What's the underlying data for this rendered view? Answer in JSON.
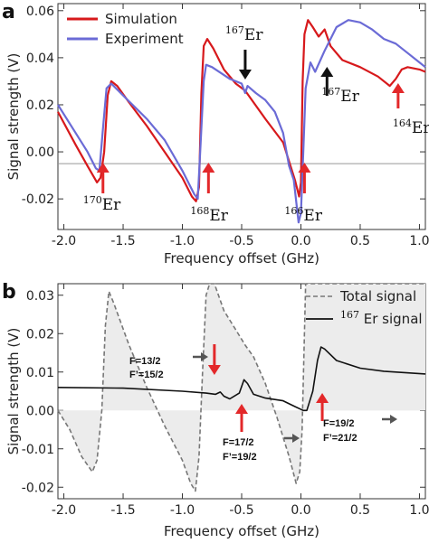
{
  "chart_data": [
    {
      "panel_label": "a",
      "type": "line",
      "xlabel": "Frequency offset (GHz)",
      "ylabel": "Signal strength (V)",
      "xlim": [
        -2.05,
        1.05
      ],
      "ylim": [
        -0.033,
        0.063
      ],
      "xticks": [
        -2.0,
        -1.5,
        -1.0,
        -0.5,
        0.0,
        0.5,
        1.0
      ],
      "xtick_labels": [
        "-2.0",
        "-1.5",
        "-1.0",
        "-0.5",
        "0.0",
        "0.5",
        "1.0"
      ],
      "yticks": [
        -0.02,
        0.0,
        0.02,
        0.04,
        0.06
      ],
      "ytick_labels": [
        "-0.02",
        "0.00",
        "0.02",
        "0.04",
        "0.06"
      ],
      "baseline_y": -0.005,
      "legend_position": "top-left",
      "series": [
        {
          "name": "Simulation",
          "color": "#d7191c",
          "points": [
            [
              -2.05,
              0.017
            ],
            [
              -1.9,
              0.003
            ],
            [
              -1.8,
              -0.006
            ],
            [
              -1.72,
              -0.013
            ],
            [
              -1.69,
              -0.011
            ],
            [
              -1.66,
              0.0
            ],
            [
              -1.63,
              0.024
            ],
            [
              -1.6,
              0.03
            ],
            [
              -1.55,
              0.028
            ],
            [
              -1.45,
              0.021
            ],
            [
              -1.3,
              0.011
            ],
            [
              -1.15,
              0.0
            ],
            [
              -1.0,
              -0.011
            ],
            [
              -0.92,
              -0.019
            ],
            [
              -0.885,
              -0.021
            ],
            [
              -0.86,
              -0.015
            ],
            [
              -0.84,
              0.025
            ],
            [
              -0.82,
              0.045
            ],
            [
              -0.79,
              0.048
            ],
            [
              -0.74,
              0.044
            ],
            [
              -0.65,
              0.035
            ],
            [
              -0.55,
              0.029
            ],
            [
              -0.47,
              0.026
            ],
            [
              -0.3,
              0.014
            ],
            [
              -0.15,
              0.004
            ],
            [
              -0.05,
              -0.012
            ],
            [
              -0.015,
              -0.019
            ],
            [
              0.0,
              -0.013
            ],
            [
              0.015,
              0.03
            ],
            [
              0.03,
              0.05
            ],
            [
              0.06,
              0.056
            ],
            [
              0.1,
              0.053
            ],
            [
              0.15,
              0.049
            ],
            [
              0.2,
              0.052
            ],
            [
              0.25,
              0.045
            ],
            [
              0.35,
              0.039
            ],
            [
              0.5,
              0.036
            ],
            [
              0.65,
              0.032
            ],
            [
              0.75,
              0.028
            ],
            [
              0.8,
              0.031
            ],
            [
              0.85,
              0.035
            ],
            [
              0.9,
              0.036
            ],
            [
              1.0,
              0.035
            ],
            [
              1.05,
              0.034
            ]
          ]
        },
        {
          "name": "Experiment",
          "color": "#6b6bd6",
          "points": [
            [
              -2.05,
              0.02
            ],
            [
              -1.9,
              0.008
            ],
            [
              -1.8,
              0.0
            ],
            [
              -1.73,
              -0.007
            ],
            [
              -1.7,
              -0.008
            ],
            [
              -1.67,
              0.01
            ],
            [
              -1.64,
              0.027
            ],
            [
              -1.6,
              0.029
            ],
            [
              -1.5,
              0.024
            ],
            [
              -1.3,
              0.014
            ],
            [
              -1.15,
              0.005
            ],
            [
              -1.0,
              -0.008
            ],
            [
              -0.9,
              -0.018
            ],
            [
              -0.87,
              -0.02
            ],
            [
              -0.85,
              0.0
            ],
            [
              -0.82,
              0.03
            ],
            [
              -0.8,
              0.037
            ],
            [
              -0.75,
              0.036
            ],
            [
              -0.6,
              0.031
            ],
            [
              -0.5,
              0.029
            ],
            [
              -0.47,
              0.025
            ],
            [
              -0.45,
              0.028
            ],
            [
              -0.38,
              0.025
            ],
            [
              -0.3,
              0.022
            ],
            [
              -0.22,
              0.017
            ],
            [
              -0.15,
              0.008
            ],
            [
              -0.1,
              -0.006
            ],
            [
              -0.06,
              -0.012
            ],
            [
              -0.02,
              -0.03
            ],
            [
              0.0,
              -0.026
            ],
            [
              0.02,
              0.0
            ],
            [
              0.04,
              0.027
            ],
            [
              0.08,
              0.038
            ],
            [
              0.12,
              0.034
            ],
            [
              0.2,
              0.043
            ],
            [
              0.3,
              0.053
            ],
            [
              0.4,
              0.056
            ],
            [
              0.5,
              0.055
            ],
            [
              0.6,
              0.052
            ],
            [
              0.7,
              0.048
            ],
            [
              0.8,
              0.046
            ],
            [
              0.9,
              0.042
            ],
            [
              1.0,
              0.038
            ],
            [
              1.05,
              0.036
            ]
          ]
        }
      ],
      "arrows": [
        {
          "label_sup": "170",
          "label": "Er",
          "color": "#e3282a",
          "x": -1.67,
          "direction": "up"
        },
        {
          "label_sup": "168",
          "label": "Er",
          "color": "#e3282a",
          "x": -0.78,
          "direction": "up"
        },
        {
          "label_sup": "167",
          "label": "Er",
          "color": "#111111",
          "x": -0.47,
          "direction": "down"
        },
        {
          "label_sup": "166",
          "label": "Er",
          "color": "#e3282a",
          "x": 0.03,
          "direction": "up"
        },
        {
          "label_sup": "167",
          "label": "Er",
          "color": "#111111",
          "x": 0.22,
          "direction": "up"
        },
        {
          "label_sup": "164",
          "label": "Er",
          "color": "#e3282a",
          "x": 0.82,
          "direction": "up"
        }
      ]
    },
    {
      "panel_label": "b",
      "type": "line",
      "xlabel": "Frequency offset (GHz)",
      "ylabel": "Signal strength (V)",
      "xlim": [
        -2.05,
        1.05
      ],
      "ylim": [
        -0.023,
        0.033
      ],
      "xticks": [
        -2.0,
        -1.5,
        -1.0,
        -0.5,
        0.0,
        0.5,
        1.0
      ],
      "xtick_labels": [
        "-2.0",
        "-1.5",
        "-1.0",
        "-0.5",
        "0.0",
        "0.5",
        "1.0"
      ],
      "yticks": [
        -0.02,
        -0.01,
        0.0,
        0.01,
        0.02,
        0.03
      ],
      "ytick_labels": [
        "-0.02",
        "-0.01",
        "0.00",
        "0.01",
        "0.02",
        "0.03"
      ],
      "legend_position": "top-right",
      "series": [
        {
          "name": "Total signal",
          "style": "dashed",
          "color": "#777777",
          "points": [
            [
              -2.05,
              0.0
            ],
            [
              -1.95,
              -0.005
            ],
            [
              -1.85,
              -0.012
            ],
            [
              -1.76,
              -0.016
            ],
            [
              -1.72,
              -0.013
            ],
            [
              -1.68,
              0.0
            ],
            [
              -1.65,
              0.022
            ],
            [
              -1.62,
              0.031
            ],
            [
              -1.58,
              0.028
            ],
            [
              -1.45,
              0.017
            ],
            [
              -1.3,
              0.006
            ],
            [
              -1.15,
              -0.004
            ],
            [
              -1.0,
              -0.013
            ],
            [
              -0.93,
              -0.019
            ],
            [
              -0.89,
              -0.021
            ],
            [
              -0.86,
              -0.012
            ],
            [
              -0.83,
              0.01
            ],
            [
              -0.8,
              0.03
            ],
            [
              -0.77,
              0.036
            ],
            [
              -0.73,
              0.034
            ],
            [
              -0.65,
              0.026
            ],
            [
              -0.55,
              0.021
            ],
            [
              -0.47,
              0.017
            ],
            [
              -0.4,
              0.014
            ],
            [
              -0.3,
              0.007
            ],
            [
              -0.2,
              -0.002
            ],
            [
              -0.1,
              -0.012
            ],
            [
              -0.04,
              -0.019
            ],
            [
              -0.01,
              -0.016
            ],
            [
              0.01,
              -0.005
            ],
            [
              0.04,
              0.033
            ],
            [
              0.07,
              0.04
            ],
            [
              0.3,
              0.04
            ],
            [
              0.6,
              0.038
            ],
            [
              1.05,
              0.036
            ]
          ]
        },
        {
          "name": "167 Er signal",
          "style": "solid",
          "color": "#111111",
          "points": [
            [
              -2.05,
              0.006
            ],
            [
              -1.5,
              0.0058
            ],
            [
              -1.0,
              0.005
            ],
            [
              -0.8,
              0.0045
            ],
            [
              -0.72,
              0.0042
            ],
            [
              -0.68,
              0.0048
            ],
            [
              -0.65,
              0.0037
            ],
            [
              -0.6,
              0.003
            ],
            [
              -0.52,
              0.0045
            ],
            [
              -0.48,
              0.008
            ],
            [
              -0.45,
              0.007
            ],
            [
              -0.4,
              0.0042
            ],
            [
              -0.3,
              0.0032
            ],
            [
              -0.15,
              0.0025
            ],
            [
              -0.05,
              0.001
            ],
            [
              0.02,
              0.0
            ],
            [
              0.05,
              0.0
            ],
            [
              0.1,
              0.005
            ],
            [
              0.14,
              0.013
            ],
            [
              0.17,
              0.0165
            ],
            [
              0.2,
              0.016
            ],
            [
              0.3,
              0.013
            ],
            [
              0.5,
              0.011
            ],
            [
              0.7,
              0.0102
            ],
            [
              1.05,
              0.0095
            ]
          ]
        }
      ],
      "annotations": [
        {
          "line1": "F=13/2",
          "line2": "F’=15/2",
          "arrow_x": -0.73
        },
        {
          "line1": "F=17/2",
          "line2": "F’=19/2",
          "arrow_x": -0.5
        },
        {
          "line1": "F=19/2",
          "line2": "F’=21/2",
          "arrow_x": 0.18
        }
      ]
    }
  ],
  "labels": {
    "panel_a": "a",
    "panel_b": "b",
    "legend_a_1": "Simulation",
    "legend_a_2": "Experiment",
    "legend_b_1": "Total signal",
    "legend_b_2_sup": "167",
    "legend_b_2": " Er signal",
    "xlabel_a": "Frequency offset (GHz)",
    "xlabel_b": "Frequency offset (GHz)",
    "ylabel_a": "Signal strength (V)",
    "ylabel_b": "Signal strength (V)"
  }
}
